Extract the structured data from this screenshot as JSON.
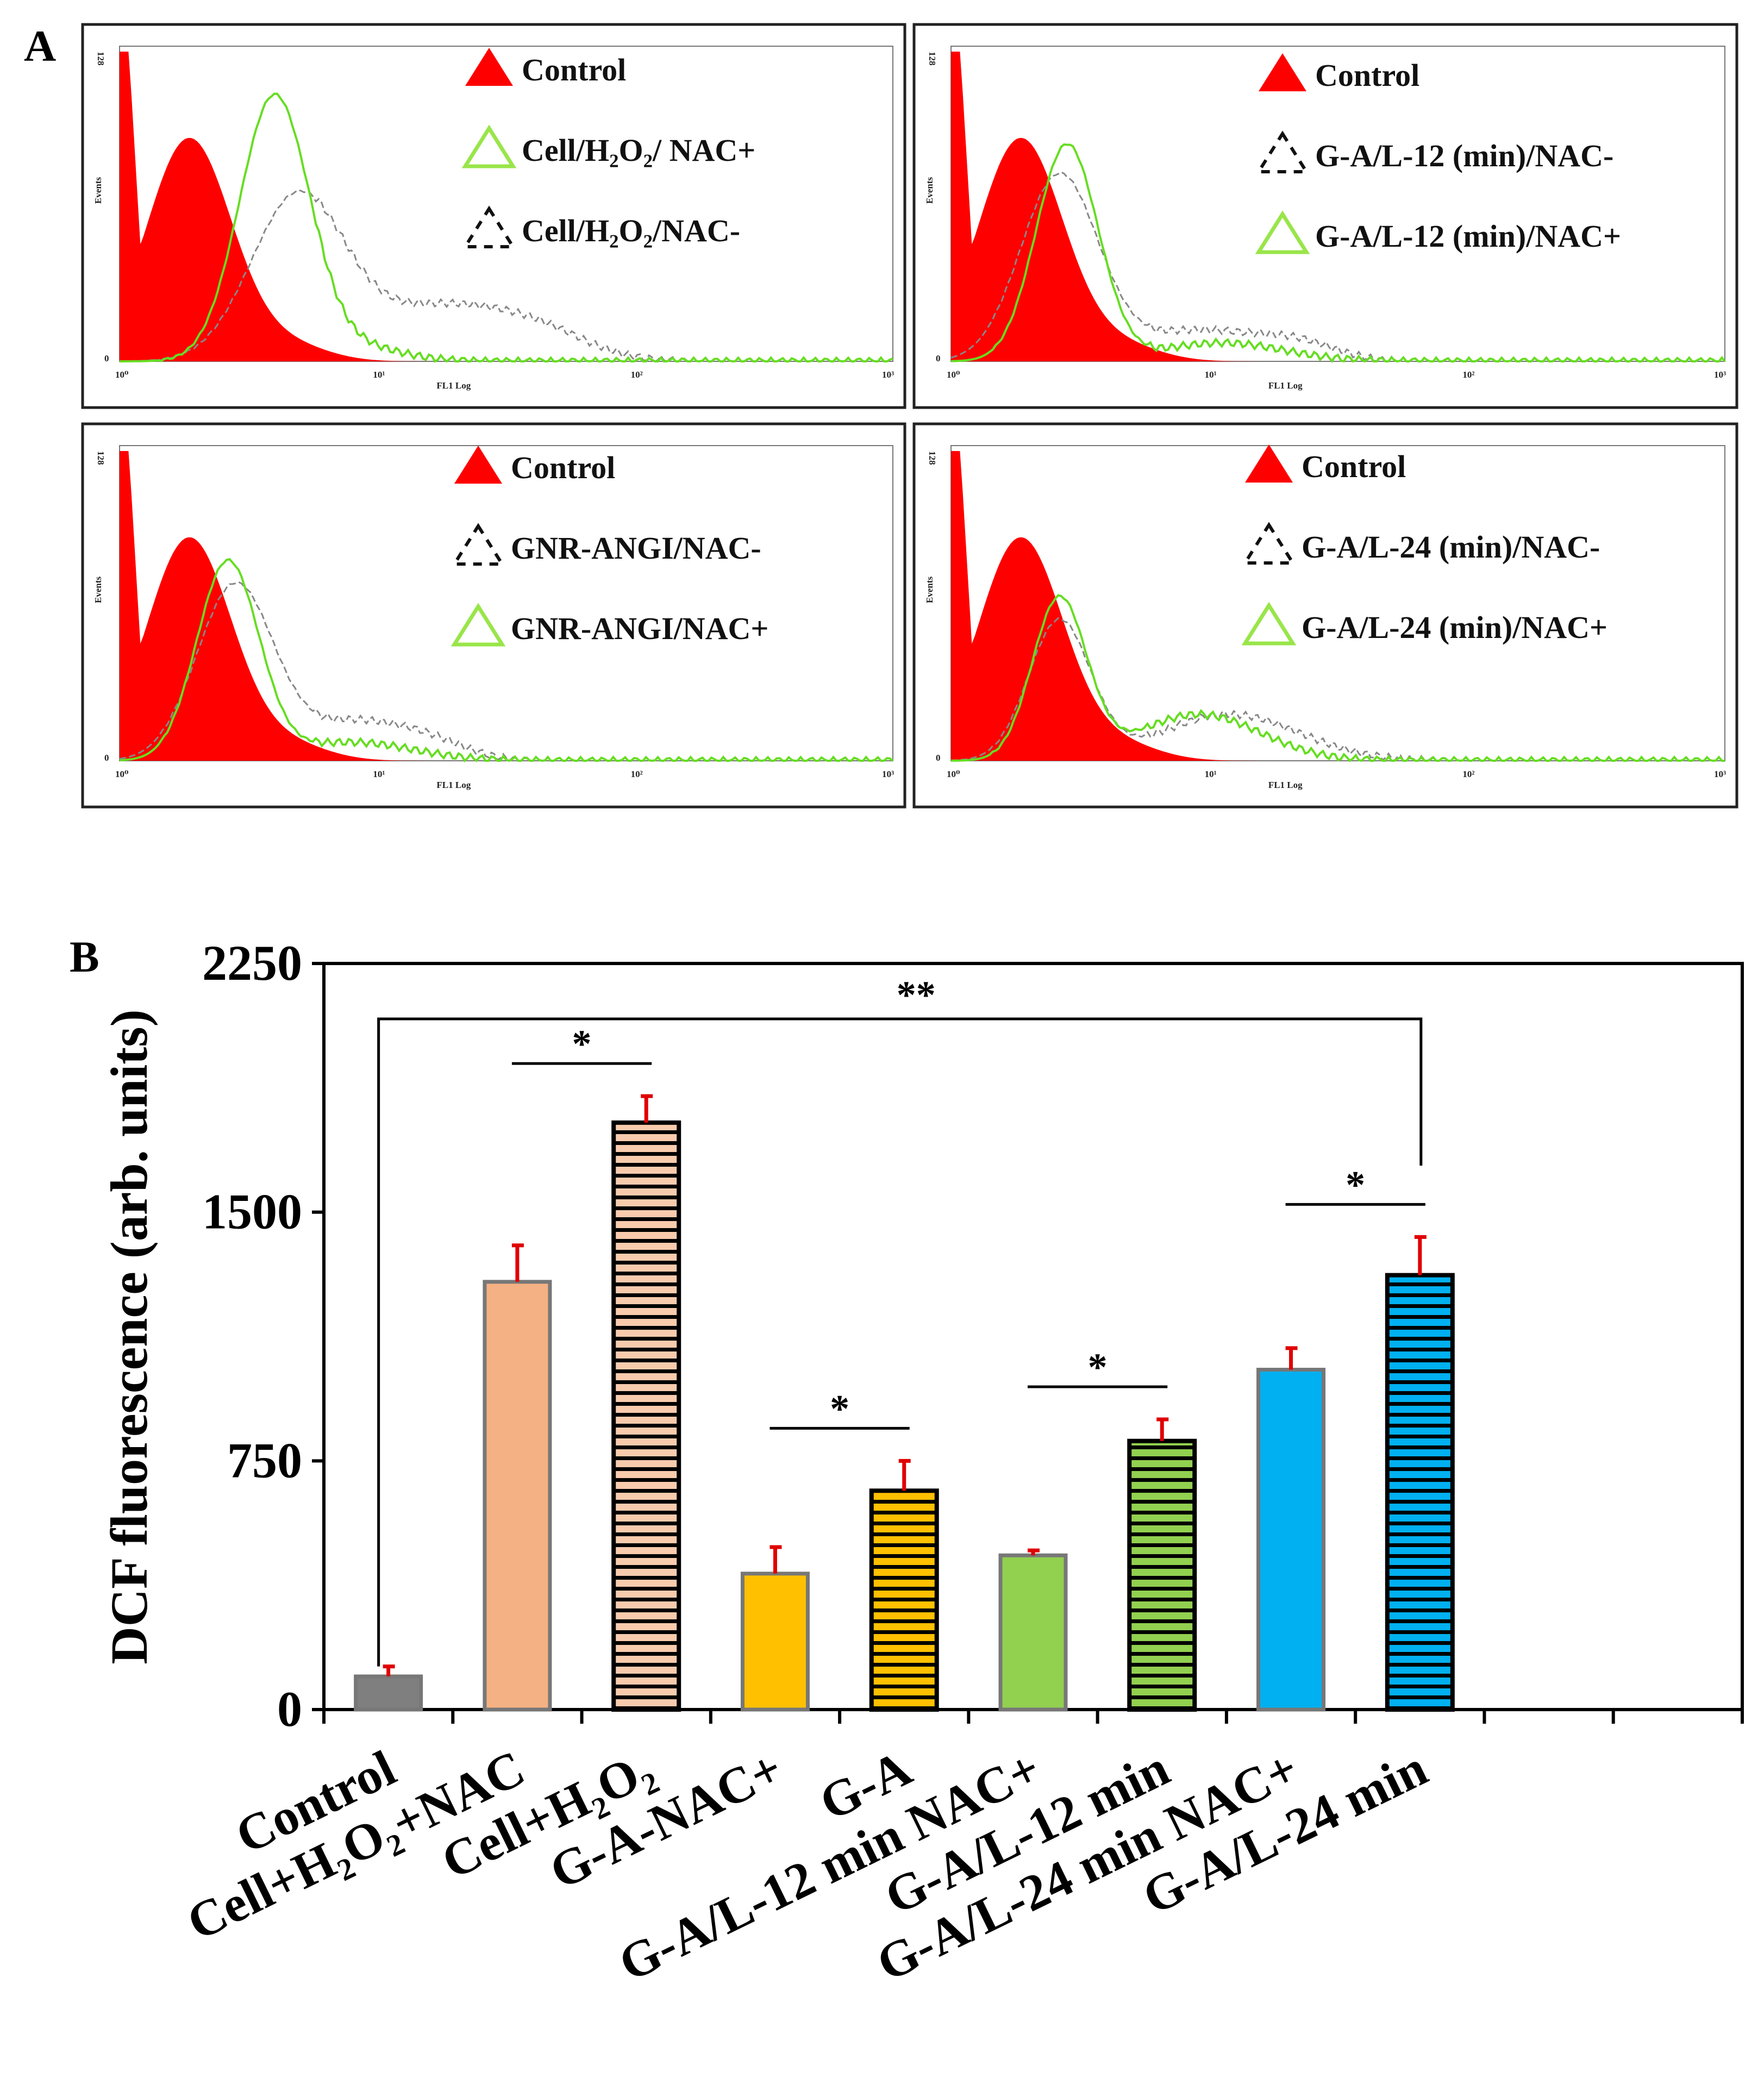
{
  "panel_a": {
    "label": "A",
    "x_label": "FL1 Log",
    "y_label": "Events",
    "y_max_label": "128",
    "y_min_label": "0",
    "x_ticks": [
      "10⁰",
      "10¹",
      "10²",
      "10³"
    ],
    "colors": {
      "control_fill": "#ff0000",
      "nac_plus_line": "#66dd22",
      "nac_minus_line": "#888888"
    },
    "panels": [
      {
        "legend": [
          "Control",
          "Cell/H₂O₂/ NAC+",
          "Cell/H₂O₂/NAC-"
        ]
      },
      {
        "legend": [
          "Control",
          "G-A/L-12 (min)/NAC-",
          "G-A/L-12 (min)/NAC+"
        ]
      },
      {
        "legend": [
          "Control",
          "GNR-ANGI/NAC-",
          "GNR-ANGI/NAC+"
        ]
      },
      {
        "legend": [
          "Control",
          "G-A/L-24 (min)/NAC-",
          "G-A/L-24 (min)/NAC+"
        ]
      }
    ]
  },
  "chart_data": {
    "type": "bar",
    "panel_label": "B",
    "title": "",
    "xlabel": "",
    "ylabel": "DCF fluorescence  (arb. units)",
    "ylim": [
      0,
      2250
    ],
    "yticks": [
      0,
      750,
      1500,
      2250
    ],
    "grid": false,
    "categories": [
      "Control",
      "Cell+H₂O₂+NAC",
      "Cell+H₂O₂",
      "G-A-NAC+",
      "G-A",
      "G-A/L-12 min NAC+",
      "G-A/L-12 min",
      "G-A/L-24 min NAC+",
      "G-A/L-24 min"
    ],
    "values": [
      100,
      1290,
      1770,
      410,
      660,
      465,
      810,
      1025,
      1310
    ],
    "errors": [
      30,
      110,
      80,
      80,
      90,
      15,
      65,
      65,
      115
    ],
    "bar_colors": [
      "#7f7f7f",
      "#f4b183",
      "#f8cbad",
      "#ffc000",
      "#ffc000",
      "#92d050",
      "#92d050",
      "#00b0f0",
      "#00b0f0"
    ],
    "striped": [
      false,
      false,
      true,
      false,
      true,
      false,
      true,
      false,
      true
    ],
    "error_color": "#e00000",
    "significance": [
      {
        "from": 1,
        "to": 2,
        "label": "*"
      },
      {
        "from": 3,
        "to": 4,
        "label": "*"
      },
      {
        "from": 5,
        "to": 6,
        "label": "*"
      },
      {
        "from": 7,
        "to": 8,
        "label": "*"
      },
      {
        "from": 0,
        "to": 8,
        "label": "**"
      }
    ]
  }
}
